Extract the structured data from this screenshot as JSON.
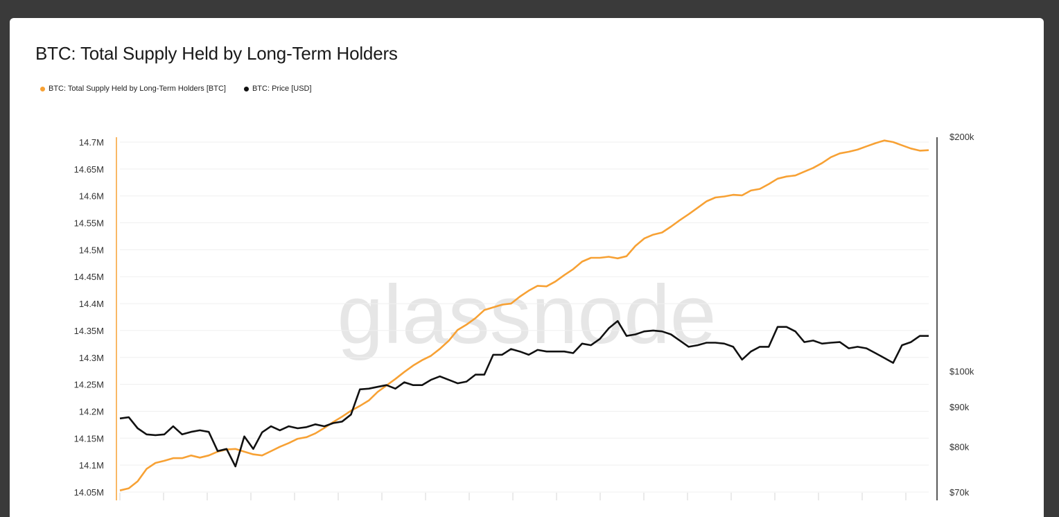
{
  "page": {
    "title": "BTC: Total Supply Held by Long-Term Holders",
    "watermark": "glassnode"
  },
  "legend": [
    {
      "label": "BTC: Total Supply Held by Long-Term Holders [BTC]",
      "color": "#f7a134"
    },
    {
      "label": "BTC: Price [USD]",
      "color": "#111111"
    }
  ],
  "chart_data": {
    "type": "line",
    "title": "BTC: Total Supply Held by Long-Term Holders",
    "grid": true,
    "legend_position": "top-left",
    "y_left": {
      "ticks": [
        "14.7M",
        "14.65M",
        "14.6M",
        "14.55M",
        "14.5M",
        "14.45M",
        "14.4M",
        "14.35M",
        "14.3M",
        "14.25M",
        "14.2M",
        "14.15M",
        "14.1M",
        "14.05M"
      ],
      "tick_values": [
        14.7,
        14.65,
        14.6,
        14.55,
        14.5,
        14.45,
        14.4,
        14.35,
        14.3,
        14.25,
        14.2,
        14.15,
        14.1,
        14.05
      ],
      "range": [
        14.05,
        14.7
      ],
      "unit": "M BTC"
    },
    "y_right": {
      "scale": "log",
      "ticks": [
        "$200k",
        "$100k",
        "$90k",
        "$80k",
        "$70k"
      ],
      "tick_values": [
        200,
        100,
        90,
        80,
        70
      ],
      "range": [
        70,
        200
      ],
      "unit": "k USD"
    },
    "series": [
      {
        "name": "BTC: Total Supply Held by Long-Term Holders [BTC]",
        "axis": "left",
        "color": "#f7a134",
        "values": [
          14.053,
          14.057,
          14.07,
          14.093,
          14.104,
          14.108,
          14.113,
          14.113,
          14.118,
          14.114,
          14.118,
          14.125,
          14.129,
          14.13,
          14.125,
          14.12,
          14.118,
          14.126,
          14.134,
          14.141,
          14.149,
          14.152,
          14.159,
          14.169,
          14.18,
          14.19,
          14.201,
          14.21,
          14.22,
          14.236,
          14.248,
          14.26,
          14.273,
          14.285,
          14.295,
          14.303,
          14.316,
          14.331,
          14.351,
          14.361,
          14.373,
          14.388,
          14.393,
          14.398,
          14.4,
          14.413,
          14.424,
          14.433,
          14.432,
          14.441,
          14.453,
          14.464,
          14.478,
          14.485,
          14.485,
          14.487,
          14.484,
          14.488,
          14.507,
          14.521,
          14.528,
          14.532,
          14.543,
          14.555,
          14.566,
          14.578,
          14.59,
          14.597,
          14.599,
          14.602,
          14.601,
          14.61,
          14.613,
          14.622,
          14.632,
          14.636,
          14.638,
          14.645,
          14.652,
          14.661,
          14.672,
          14.679,
          14.682,
          14.686,
          14.692,
          14.698,
          14.703,
          14.7,
          14.694,
          14.688,
          14.684,
          14.685
        ]
      },
      {
        "name": "BTC: Price [USD]",
        "axis": "right",
        "color": "#111111",
        "values": [
          87.0,
          87.3,
          84.5,
          83.0,
          82.8,
          83.0,
          85.0,
          83.0,
          83.6,
          84.0,
          83.6,
          79.0,
          79.5,
          75.5,
          82.5,
          79.5,
          83.5,
          85.0,
          84.0,
          85.0,
          84.5,
          84.8,
          85.5,
          85.0,
          85.8,
          86.2,
          88.0,
          94.8,
          95.0,
          95.5,
          96.0,
          95.0,
          96.8,
          96.0,
          96.0,
          97.5,
          98.5,
          97.5,
          96.5,
          97.0,
          99.0,
          99.0,
          105.0,
          105.0,
          106.8,
          106.0,
          105.0,
          106.5,
          106.0,
          106.0,
          106.0,
          105.5,
          108.5,
          108.0,
          110.0,
          113.5,
          116.0,
          111.0,
          111.5,
          112.5,
          112.8,
          112.5,
          111.5,
          109.5,
          107.5,
          108.0,
          108.8,
          108.8,
          108.5,
          107.5,
          103.5,
          106.0,
          107.5,
          107.5,
          114.0,
          114.0,
          112.5,
          109.0,
          109.5,
          108.5,
          108.8,
          109.0,
          107.0,
          107.5,
          107.0,
          105.5,
          104.0,
          102.5,
          108.0,
          109.0,
          111.0,
          111.0
        ]
      }
    ]
  }
}
